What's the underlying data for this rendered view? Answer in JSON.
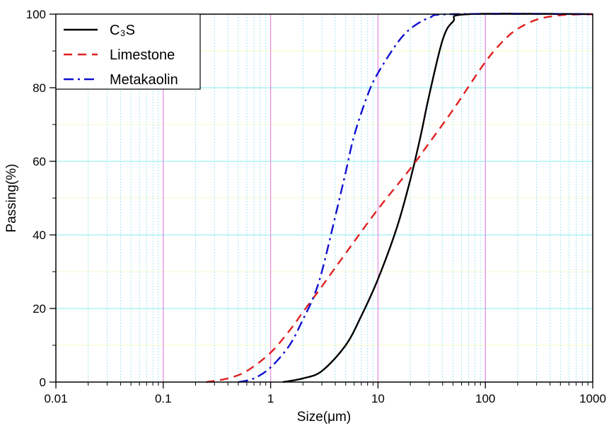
{
  "chart_data": {
    "type": "line",
    "title": "",
    "xlabel": "Size(μm)",
    "ylabel": "Passing(%)",
    "xscale": "log",
    "xlim": [
      0.01,
      1000
    ],
    "ylim": [
      0,
      100
    ],
    "xticks": [
      0.01,
      0.1,
      1,
      10,
      100,
      1000
    ],
    "xtick_labels": [
      "0.01",
      "0.1",
      "1",
      "10",
      "100",
      "1000"
    ],
    "yticks": [
      0,
      20,
      40,
      60,
      80,
      100
    ],
    "ytick_labels": [
      "0",
      "20",
      "40",
      "60",
      "80",
      "100"
    ],
    "grid": true,
    "legend_position": "top-left",
    "series": [
      {
        "name": "C₃S",
        "color": "#000000",
        "dash": "solid",
        "x": [
          1.3,
          2,
          3,
          5,
          7,
          10,
          15,
          20,
          25,
          30,
          40,
          50,
          70,
          1000
        ],
        "y": [
          0,
          1,
          3,
          10,
          18,
          28,
          42,
          55,
          67,
          78,
          93,
          98,
          100,
          100
        ]
      },
      {
        "name": "Limestone",
        "color": "#e02020",
        "dash": "dash",
        "x": [
          0.25,
          0.4,
          0.6,
          1,
          1.5,
          2,
          3,
          5,
          10,
          20,
          30,
          50,
          100,
          150,
          200,
          300,
          500,
          1000
        ],
        "y": [
          0,
          1,
          3,
          8,
          14,
          19,
          26,
          35,
          47,
          58,
          65,
          74,
          87,
          93,
          96,
          98.5,
          99.7,
          100
        ]
      },
      {
        "name": "Metakaolin",
        "color": "#1010d0",
        "dash": "dashdot",
        "x": [
          0.5,
          0.7,
          1,
          1.5,
          2,
          2.5,
          3,
          4,
          5,
          6,
          8,
          10,
          15,
          20,
          30,
          50,
          1000
        ],
        "y": [
          0,
          1,
          4,
          10,
          17,
          23,
          30,
          45,
          57,
          67,
          78,
          84,
          92,
          96,
          99,
          100,
          100
        ]
      }
    ]
  }
}
